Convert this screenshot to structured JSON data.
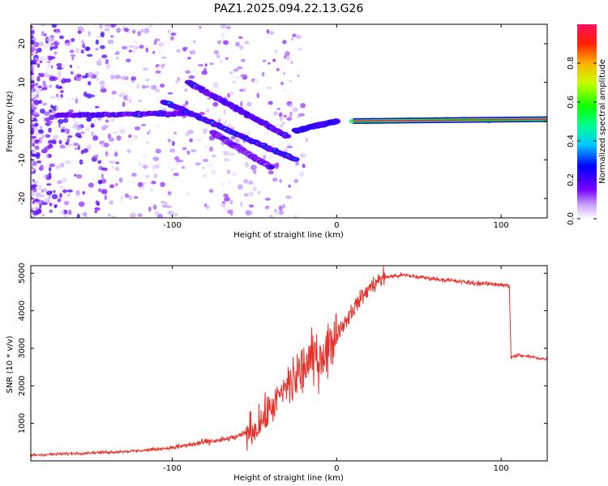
{
  "title": "PAZ1.2025.094.22.13.G26",
  "chart_data": [
    {
      "type": "heatmap",
      "xlabel": "Height of straight line (km)",
      "ylabel": "Frequency (Hz)",
      "xlim": [
        -186,
        128
      ],
      "ylim": [
        -25,
        25
      ],
      "xticks": [
        -100,
        0,
        100
      ],
      "yticks": [
        -20,
        -10,
        0,
        10,
        20
      ],
      "colorbar": {
        "label": "Normalized spectral amplitude",
        "range": [
          0,
          1
        ],
        "ticks": [
          0.0,
          0.2,
          0.4,
          0.6,
          0.8
        ]
      },
      "ridges": [
        {
          "x": [
            10,
            128
          ],
          "y": [
            0,
            0.5
          ],
          "amplitude": 1.0
        },
        {
          "x": [
            -25,
            0
          ],
          "y": [
            -2.5,
            0
          ],
          "amplitude": 0.45
        },
        {
          "x": [
            -170,
            -90
          ],
          "y": [
            1.5,
            2
          ],
          "amplitude": 0.35
        },
        {
          "x": [
            -105,
            -25
          ],
          "y": [
            5,
            -10
          ],
          "amplitude": 0.4
        },
        {
          "x": [
            -90,
            -30
          ],
          "y": [
            10,
            -4
          ],
          "amplitude": 0.35
        },
        {
          "x": [
            -75,
            -40
          ],
          "y": [
            -3,
            -12
          ],
          "amplitude": 0.3
        }
      ]
    },
    {
      "type": "line",
      "xlabel": "Height of straight line (km)",
      "ylabel": "SNR (10 * v/v)",
      "xlim": [
        -186,
        128
      ],
      "ylim": [
        0,
        5200
      ],
      "xticks": [
        -100,
        0,
        100
      ],
      "yticks": [
        1000,
        2000,
        3000,
        4000,
        5000
      ],
      "series": [
        {
          "color": "#e8302a",
          "x": [
            -186,
            -160,
            -140,
            -120,
            -100,
            -90,
            -80,
            -70,
            -60,
            -50,
            -45,
            -40,
            -35,
            -30,
            -25,
            -20,
            -15,
            -10,
            -5,
            0,
            5,
            10,
            15,
            20,
            25,
            30,
            40,
            50,
            60,
            70,
            80,
            90,
            100,
            105,
            106,
            110,
            120,
            128
          ],
          "y": [
            150,
            200,
            230,
            270,
            350,
            420,
            500,
            550,
            650,
            850,
            1100,
            1400,
            1700,
            2000,
            2200,
            2500,
            2700,
            2800,
            3000,
            3400,
            3700,
            4050,
            4350,
            4600,
            4800,
            4900,
            4950,
            4900,
            4850,
            4800,
            4750,
            4720,
            4700,
            4650,
            2750,
            2820,
            2760,
            2700
          ]
        }
      ]
    }
  ]
}
